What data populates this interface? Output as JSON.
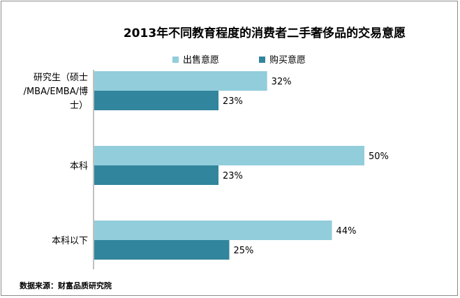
{
  "chart_data": {
    "type": "bar",
    "orientation": "horizontal",
    "title": "2013年不同教育程度的消费者二手奢侈品的交易意愿",
    "categories": [
      [
        "研究生（硕士",
        "/MBA/EMBA/博",
        "士）"
      ],
      [
        "本科"
      ],
      [
        "本科以下"
      ]
    ],
    "series": [
      {
        "name": "出售意愿",
        "color": "#92cddc",
        "values": [
          32,
          50,
          44
        ],
        "labels": [
          "32%",
          "50%",
          "44%"
        ]
      },
      {
        "name": "购买意愿",
        "color": "#31859c",
        "values": [
          23,
          23,
          25
        ],
        "labels": [
          "23%",
          "23%",
          "25%"
        ]
      }
    ],
    "xlim": [
      0,
      60
    ],
    "legend_position": "top",
    "grid": false,
    "source": "数据来源：财富品质研究院"
  }
}
